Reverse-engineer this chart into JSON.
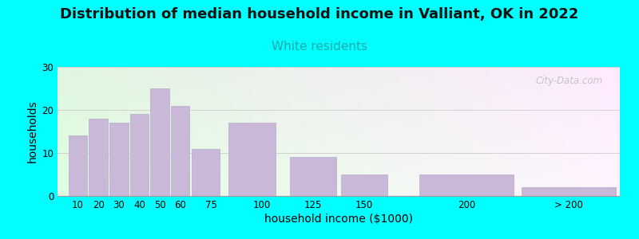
{
  "title": "Distribution of median household income in Valliant, OK in 2022",
  "subtitle": "White residents",
  "xlabel": "household income ($1000)",
  "ylabel": "households",
  "background_color": "#00FFFF",
  "bar_color": "#c9b8d8",
  "bar_edge_color": "#b8a8cc",
  "tick_labels": [
    "10",
    "20",
    "30",
    "40",
    "50",
    "60",
    "75",
    "100",
    "125",
    "150",
    "200",
    "> 200"
  ],
  "bar_lefts": [
    5,
    15,
    25,
    35,
    45,
    55,
    65,
    82.5,
    112.5,
    137.5,
    175,
    225
  ],
  "bar_widths": [
    10,
    10,
    10,
    10,
    10,
    10,
    15,
    25,
    25,
    25,
    50,
    50
  ],
  "values": [
    14,
    18,
    17,
    19,
    25,
    21,
    11,
    17,
    9,
    5,
    5,
    2
  ],
  "ylim": [
    0,
    30
  ],
  "xlim": [
    0,
    275
  ],
  "yticks": [
    0,
    10,
    20,
    30
  ],
  "xtick_positions": [
    10,
    20,
    30,
    40,
    50,
    60,
    75,
    100,
    125,
    150,
    200,
    250
  ],
  "title_fontsize": 13,
  "subtitle_fontsize": 11,
  "subtitle_color": "#22AAAA",
  "axis_label_fontsize": 10,
  "tick_fontsize": 8.5,
  "watermark_text": "City-Data.com"
}
